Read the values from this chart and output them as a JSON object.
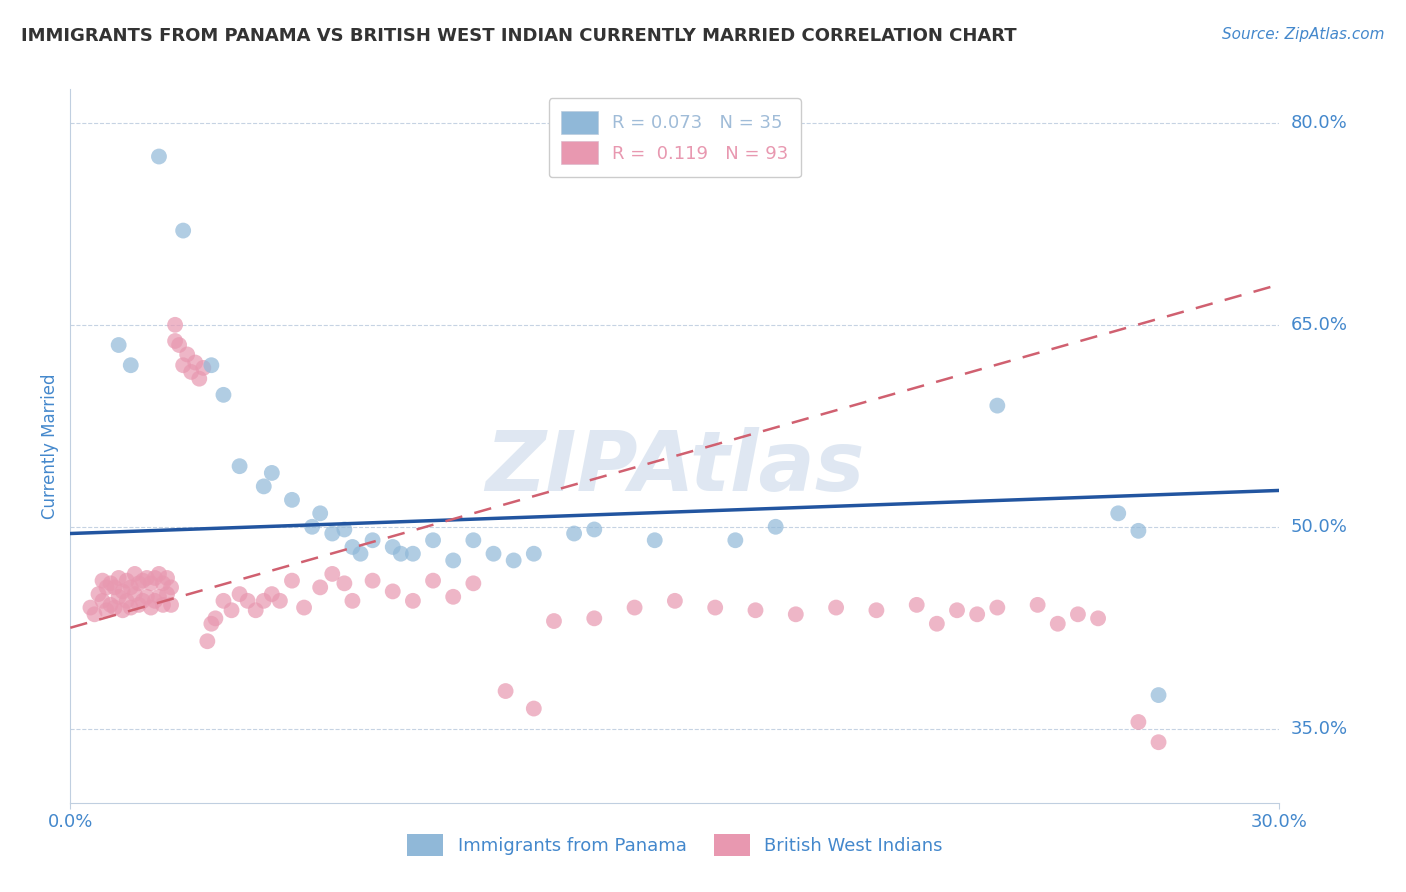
{
  "title": "IMMIGRANTS FROM PANAMA VS BRITISH WEST INDIAN CURRENTLY MARRIED CORRELATION CHART",
  "source_text": "Source: ZipAtlas.com",
  "ylabel": "Currently Married",
  "xlabel": "",
  "x_min": 0.0,
  "x_max": 0.3,
  "y_min": 0.295,
  "y_max": 0.825,
  "y_ticks": [
    0.35,
    0.5,
    0.65,
    0.8
  ],
  "y_tick_labels": [
    "35.0%",
    "50.0%",
    "65.0%",
    "80.0%"
  ],
  "x_ticks": [
    0.0,
    0.3
  ],
  "x_tick_labels": [
    "0.0%",
    "30.0%"
  ],
  "watermark": "ZIPAtlas",
  "legend_items": [
    {
      "label": "R = 0.073   N = 35",
      "color": "#a0bcd8"
    },
    {
      "label": "R =  0.119   N = 93",
      "color": "#e898b0"
    }
  ],
  "panama_color": "#90b8d8",
  "bwi_color": "#e898b0",
  "panama_line_color": "#2255a0",
  "bwi_line_color": "#d06070",
  "grid_color": "#c0cfe0",
  "background_color": "#ffffff",
  "title_color": "#333333",
  "axis_color": "#4488cc",
  "panama_R": 0.073,
  "bwi_R": 0.119,
  "panama_line_x0": 0.0,
  "panama_line_y0": 0.495,
  "panama_line_x1": 0.3,
  "panama_line_y1": 0.527,
  "bwi_line_x0": 0.0,
  "bwi_line_y0": 0.425,
  "bwi_line_x1": 0.3,
  "bwi_line_y1": 0.68,
  "panama_scatter_x": [
    0.022,
    0.028,
    0.012,
    0.015,
    0.035,
    0.038,
    0.042,
    0.048,
    0.05,
    0.055,
    0.06,
    0.062,
    0.065,
    0.068,
    0.07,
    0.072,
    0.075,
    0.08,
    0.082,
    0.085,
    0.09,
    0.095,
    0.1,
    0.105,
    0.11,
    0.115,
    0.125,
    0.13,
    0.145,
    0.165,
    0.175,
    0.23,
    0.26,
    0.265,
    0.27
  ],
  "panama_scatter_y": [
    0.775,
    0.72,
    0.635,
    0.62,
    0.62,
    0.598,
    0.545,
    0.53,
    0.54,
    0.52,
    0.5,
    0.51,
    0.495,
    0.498,
    0.485,
    0.48,
    0.49,
    0.485,
    0.48,
    0.48,
    0.49,
    0.475,
    0.49,
    0.48,
    0.475,
    0.48,
    0.495,
    0.498,
    0.49,
    0.49,
    0.5,
    0.59,
    0.51,
    0.497,
    0.375
  ],
  "bwi_scatter_x": [
    0.005,
    0.006,
    0.007,
    0.008,
    0.008,
    0.009,
    0.009,
    0.01,
    0.01,
    0.011,
    0.011,
    0.012,
    0.012,
    0.013,
    0.013,
    0.014,
    0.014,
    0.015,
    0.015,
    0.016,
    0.016,
    0.017,
    0.017,
    0.018,
    0.018,
    0.019,
    0.019,
    0.02,
    0.02,
    0.021,
    0.021,
    0.022,
    0.022,
    0.023,
    0.023,
    0.024,
    0.024,
    0.025,
    0.025,
    0.026,
    0.026,
    0.027,
    0.028,
    0.029,
    0.03,
    0.031,
    0.032,
    0.033,
    0.034,
    0.035,
    0.036,
    0.038,
    0.04,
    0.042,
    0.044,
    0.046,
    0.048,
    0.05,
    0.052,
    0.055,
    0.058,
    0.062,
    0.065,
    0.068,
    0.07,
    0.075,
    0.08,
    0.085,
    0.09,
    0.095,
    0.1,
    0.108,
    0.115,
    0.12,
    0.13,
    0.14,
    0.15,
    0.16,
    0.17,
    0.18,
    0.19,
    0.2,
    0.21,
    0.215,
    0.22,
    0.225,
    0.23,
    0.24,
    0.245,
    0.25,
    0.255,
    0.265,
    0.27
  ],
  "bwi_scatter_y": [
    0.44,
    0.435,
    0.45,
    0.445,
    0.46,
    0.438,
    0.455,
    0.442,
    0.458,
    0.44,
    0.455,
    0.448,
    0.462,
    0.438,
    0.452,
    0.445,
    0.46,
    0.44,
    0.455,
    0.45,
    0.465,
    0.442,
    0.458,
    0.445,
    0.46,
    0.448,
    0.462,
    0.44,
    0.458,
    0.445,
    0.462,
    0.448,
    0.465,
    0.442,
    0.458,
    0.45,
    0.462,
    0.455,
    0.442,
    0.638,
    0.65,
    0.635,
    0.62,
    0.628,
    0.615,
    0.622,
    0.61,
    0.618,
    0.415,
    0.428,
    0.432,
    0.445,
    0.438,
    0.45,
    0.445,
    0.438,
    0.445,
    0.45,
    0.445,
    0.46,
    0.44,
    0.455,
    0.465,
    0.458,
    0.445,
    0.46,
    0.452,
    0.445,
    0.46,
    0.448,
    0.458,
    0.378,
    0.365,
    0.43,
    0.432,
    0.44,
    0.445,
    0.44,
    0.438,
    0.435,
    0.44,
    0.438,
    0.442,
    0.428,
    0.438,
    0.435,
    0.44,
    0.442,
    0.428,
    0.435,
    0.432,
    0.355,
    0.34
  ]
}
